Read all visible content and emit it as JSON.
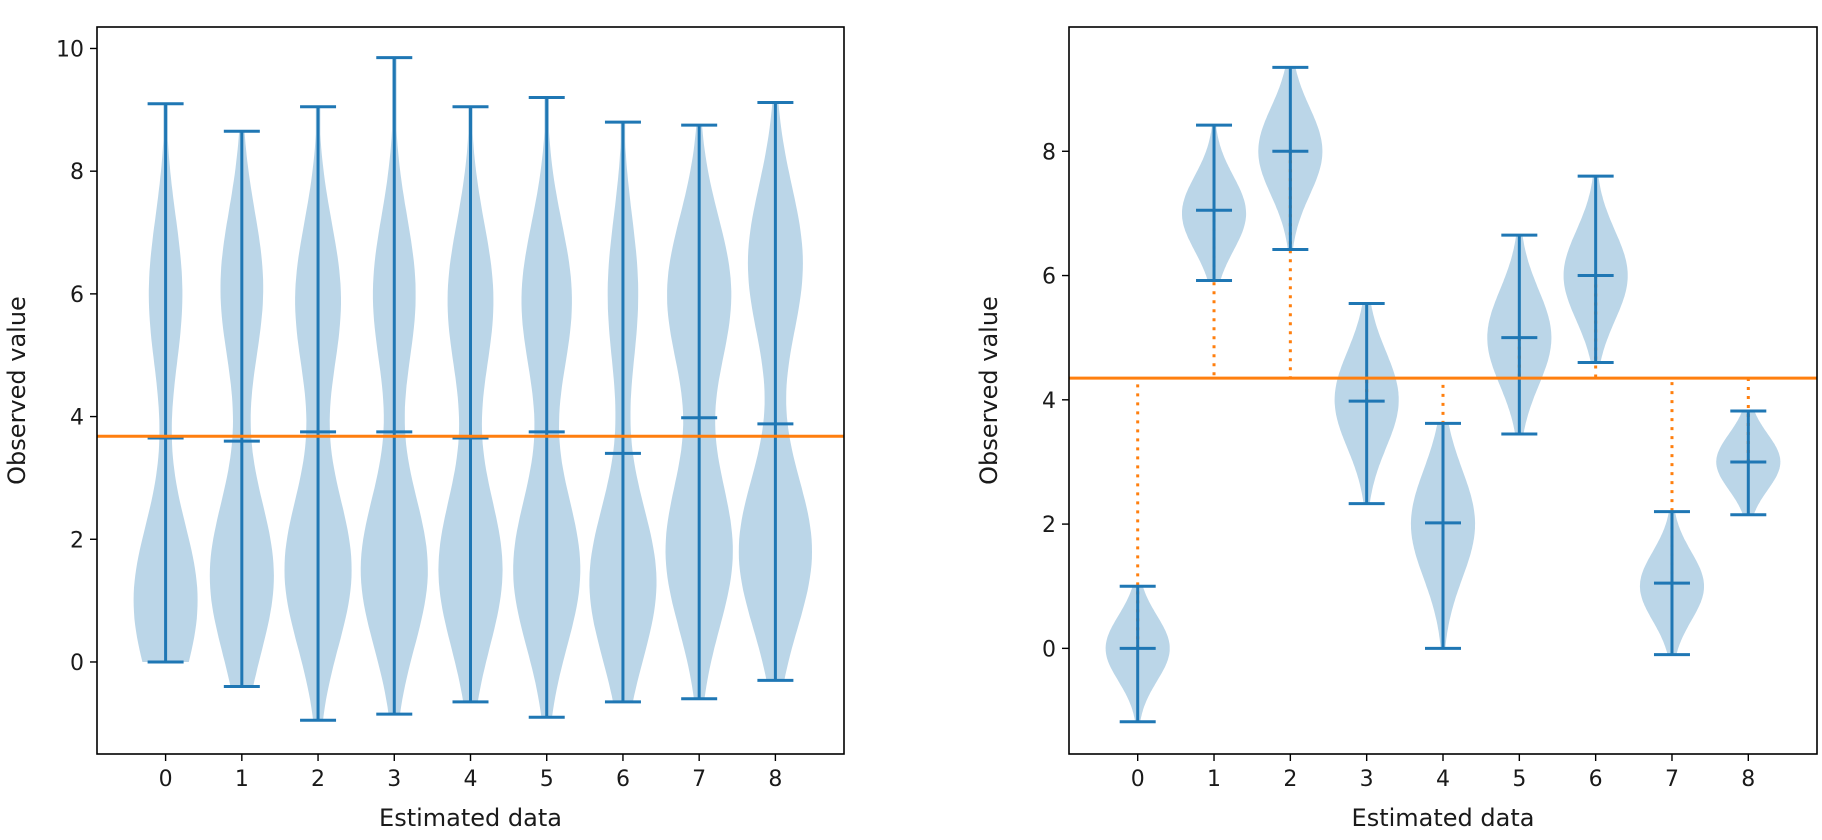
{
  "chart_data": [
    {
      "type": "violin",
      "xlabel": "Estimated data",
      "ylabel": "Observed value",
      "xlim": [
        -0.9,
        8.9
      ],
      "ylim": [
        -1.5,
        10.35
      ],
      "xticks": [
        "0",
        "1",
        "2",
        "3",
        "4",
        "5",
        "6",
        "7",
        "8"
      ],
      "yticks": [
        "0",
        "2",
        "4",
        "6",
        "8",
        "10"
      ],
      "violins": [
        {
          "x": 0,
          "min": 0.0,
          "median": 3.65,
          "max": 9.1,
          "peaks": [
            [
              1.0,
              0.42
            ],
            [
              6.0,
              0.22
            ]
          ]
        },
        {
          "x": 1,
          "min": -0.4,
          "median": 3.6,
          "max": 8.65,
          "peaks": [
            [
              1.4,
              0.42
            ],
            [
              6.1,
              0.28
            ]
          ]
        },
        {
          "x": 2,
          "min": -0.95,
          "median": 3.75,
          "max": 9.05,
          "peaks": [
            [
              1.5,
              0.44
            ],
            [
              5.9,
              0.3
            ]
          ]
        },
        {
          "x": 3,
          "min": -0.85,
          "median": 3.75,
          "max": 9.85,
          "peaks": [
            [
              1.5,
              0.44
            ],
            [
              6.0,
              0.28
            ]
          ]
        },
        {
          "x": 4,
          "min": -0.65,
          "median": 3.65,
          "max": 9.05,
          "peaks": [
            [
              1.5,
              0.42
            ],
            [
              5.9,
              0.3
            ]
          ]
        },
        {
          "x": 5,
          "min": -0.9,
          "median": 3.75,
          "max": 9.2,
          "peaks": [
            [
              1.5,
              0.44
            ],
            [
              5.9,
              0.33
            ]
          ]
        },
        {
          "x": 6,
          "min": -0.65,
          "median": 3.4,
          "max": 8.8,
          "peaks": [
            [
              1.3,
              0.44
            ],
            [
              6.0,
              0.2
            ]
          ]
        },
        {
          "x": 7,
          "min": -0.6,
          "median": 3.98,
          "max": 8.75,
          "peaks": [
            [
              1.8,
              0.44
            ],
            [
              6.0,
              0.42
            ]
          ]
        },
        {
          "x": 8,
          "min": -0.3,
          "median": 3.88,
          "max": 9.12,
          "peaks": [
            [
              1.8,
              0.48
            ],
            [
              6.5,
              0.36
            ]
          ]
        }
      ],
      "reference_line": {
        "y": 3.68
      }
    },
    {
      "type": "violin",
      "xlabel": "Estimated data",
      "ylabel": "Observed value",
      "xlim": [
        -0.9,
        8.9
      ],
      "ylim": [
        -1.7,
        10.0
      ],
      "xticks": [
        "0",
        "1",
        "2",
        "3",
        "4",
        "5",
        "6",
        "7",
        "8"
      ],
      "yticks": [
        "0",
        "2",
        "4",
        "6",
        "8"
      ],
      "violins": [
        {
          "x": 0,
          "min": -1.18,
          "median": 0.0,
          "max": 1.0,
          "peaks": [
            [
              0.0,
              0.42
            ]
          ]
        },
        {
          "x": 1,
          "min": 5.92,
          "median": 7.05,
          "max": 8.42,
          "peaks": [
            [
              7.0,
              0.42
            ]
          ]
        },
        {
          "x": 2,
          "min": 6.42,
          "median": 8.0,
          "max": 9.35,
          "peaks": [
            [
              8.0,
              0.42
            ]
          ]
        },
        {
          "x": 3,
          "min": 2.33,
          "median": 3.98,
          "max": 5.55,
          "peaks": [
            [
              4.0,
              0.42
            ]
          ]
        },
        {
          "x": 4,
          "min": 0.0,
          "median": 2.02,
          "max": 3.62,
          "peaks": [
            [
              2.0,
              0.42
            ]
          ]
        },
        {
          "x": 5,
          "min": 3.45,
          "median": 5.0,
          "max": 6.65,
          "peaks": [
            [
              5.0,
              0.42
            ]
          ]
        },
        {
          "x": 6,
          "min": 4.6,
          "median": 6.0,
          "max": 7.6,
          "peaks": [
            [
              6.0,
              0.42
            ]
          ]
        },
        {
          "x": 7,
          "min": -0.1,
          "median": 1.05,
          "max": 2.2,
          "peaks": [
            [
              1.0,
              0.42
            ]
          ]
        },
        {
          "x": 8,
          "min": 2.15,
          "median": 3.0,
          "max": 3.82,
          "peaks": [
            [
              3.0,
              0.42
            ]
          ]
        }
      ],
      "reference_line": {
        "y": 4.35
      },
      "residual_lines": true
    }
  ],
  "colors": {
    "violin_body": "#1f77b4",
    "violin_lines": "#1f77b4",
    "reference_line": "#ff7f0e",
    "axis": "#000000"
  }
}
